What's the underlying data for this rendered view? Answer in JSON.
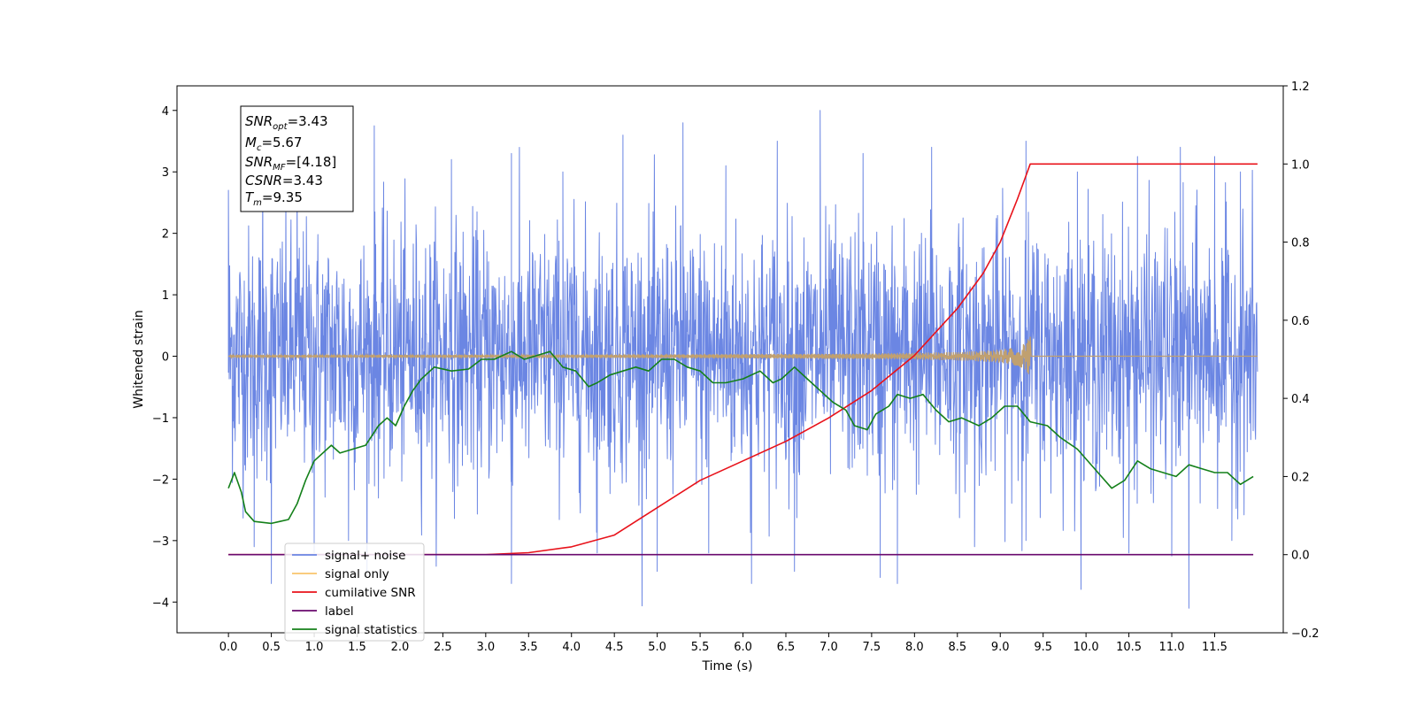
{
  "chart_data": {
    "type": "line",
    "xlabel": "Time (s)",
    "ylabel": "Whitened strain",
    "xlim": [
      -0.6,
      12.3
    ],
    "ylim_left": [
      -4.5,
      4.4
    ],
    "ylim_right": [
      -0.2,
      1.2
    ],
    "x_ticks": [
      0.0,
      0.5,
      1.0,
      1.5,
      2.0,
      2.5,
      3.0,
      3.5,
      4.0,
      4.5,
      5.0,
      5.5,
      6.0,
      6.5,
      7.0,
      7.5,
      8.0,
      8.5,
      9.0,
      9.5,
      10.0,
      10.5,
      11.0,
      11.5
    ],
    "x_tick_labels": [
      "0.0",
      "0.5",
      "1.0",
      "1.5",
      "2.0",
      "2.5",
      "3.0",
      "3.5",
      "4.0",
      "4.5",
      "5.0",
      "5.5",
      "6.0",
      "6.5",
      "7.0",
      "7.5",
      "8.0",
      "8.5",
      "9.0",
      "9.5",
      "10.0",
      "10.5",
      "11.0",
      "11.5"
    ],
    "y_ticks_left": [
      -4,
      -3,
      -2,
      -1,
      0,
      1,
      2,
      3,
      4
    ],
    "y_tick_labels_left": [
      "−4",
      "−3",
      "−2",
      "−1",
      "0",
      "1",
      "2",
      "3",
      "4"
    ],
    "y_ticks_right": [
      -0.2,
      0.0,
      0.2,
      0.4,
      0.6,
      0.8,
      1.0,
      1.2
    ],
    "y_tick_labels_right": [
      "−0.2",
      "0.0",
      "0.2",
      "0.4",
      "0.6",
      "0.8",
      "1.0",
      "1.2"
    ],
    "grid": false,
    "legend_position": "lower-left",
    "annotation": {
      "lines": [
        {
          "main": "SNR",
          "sub": "opt",
          "value": "=3.43"
        },
        {
          "main": "M",
          "sub": "c",
          "value": "=5.67"
        },
        {
          "main": "SNR",
          "sub": "MF",
          "value": "=[4.18]"
        },
        {
          "main": "CSNR",
          "sub": "",
          "value": "=3.43"
        },
        {
          "main": "T",
          "sub": "m",
          "value": "=9.35"
        }
      ]
    },
    "series": [
      {
        "name": "signal+ noise",
        "axis": "left",
        "color": "#6b86e3",
        "kind": "noise_band",
        "x_range": [
          0.0,
          12.0
        ],
        "typical_range": [
          -2.2,
          2.3
        ],
        "spikes_up": [
          [
            0.0,
            2.7
          ],
          [
            0.4,
            2.9
          ],
          [
            0.8,
            3.5
          ],
          [
            1.7,
            3.75
          ],
          [
            2.6,
            3.2
          ],
          [
            3.3,
            3.3
          ],
          [
            3.9,
            3.0
          ],
          [
            4.6,
            3.6
          ],
          [
            5.3,
            3.8
          ],
          [
            5.8,
            3.1
          ],
          [
            6.4,
            3.5
          ],
          [
            6.9,
            4.0
          ],
          [
            7.4,
            3.3
          ],
          [
            8.2,
            3.4
          ],
          [
            9.3,
            3.5
          ],
          [
            9.9,
            3.0
          ],
          [
            10.6,
            3.25
          ],
          [
            11.1,
            3.4
          ],
          [
            11.5,
            3.25
          ],
          [
            11.8,
            3.0
          ]
        ],
        "spikes_down": [
          [
            0.3,
            -3.1
          ],
          [
            0.5,
            -3.7
          ],
          [
            1.0,
            -3.2
          ],
          [
            1.4,
            -3.0
          ],
          [
            3.3,
            -3.7
          ],
          [
            4.3,
            -3.2
          ],
          [
            5.0,
            -3.5
          ],
          [
            5.6,
            -3.2
          ],
          [
            6.1,
            -3.7
          ],
          [
            6.6,
            -3.5
          ],
          [
            7.6,
            -3.6
          ],
          [
            7.8,
            -3.7
          ],
          [
            8.7,
            -3.1
          ],
          [
            9.3,
            -3.0
          ],
          [
            10.5,
            -3.2
          ],
          [
            11.0,
            -3.25
          ],
          [
            11.2,
            -4.1
          ],
          [
            11.7,
            -3.0
          ]
        ]
      },
      {
        "name": "signal only",
        "axis": "left",
        "color": "#c0a070",
        "kind": "chirp",
        "x_range": [
          0.0,
          12.0
        ],
        "merger_time": 9.35,
        "peak_amplitude": 0.35
      },
      {
        "name": "cumilative SNR",
        "axis": "right",
        "color": "#e8121a",
        "x": [
          0.0,
          3.0,
          3.5,
          4.0,
          4.5,
          5.0,
          5.5,
          6.0,
          6.5,
          7.0,
          7.5,
          8.0,
          8.5,
          8.8,
          9.0,
          9.2,
          9.3,
          9.35,
          12.0
        ],
        "y": [
          0.0,
          0.0,
          0.005,
          0.02,
          0.05,
          0.12,
          0.19,
          0.24,
          0.29,
          0.35,
          0.42,
          0.51,
          0.63,
          0.72,
          0.8,
          0.91,
          0.97,
          1.0,
          1.0
        ]
      },
      {
        "name": "label",
        "axis": "right",
        "color": "#6a0a6e",
        "x": [
          0.0,
          11.95
        ],
        "y": [
          0.0,
          0.0
        ]
      },
      {
        "name": "signal statistics",
        "axis": "right",
        "color": "#14801a",
        "x": [
          0.0,
          0.07,
          0.15,
          0.2,
          0.3,
          0.5,
          0.6,
          0.7,
          0.8,
          0.9,
          1.0,
          1.2,
          1.3,
          1.45,
          1.6,
          1.75,
          1.85,
          1.95,
          2.05,
          2.15,
          2.25,
          2.4,
          2.6,
          2.8,
          2.95,
          3.1,
          3.3,
          3.45,
          3.6,
          3.75,
          3.9,
          4.05,
          4.2,
          4.3,
          4.45,
          4.6,
          4.75,
          4.9,
          5.05,
          5.2,
          5.35,
          5.5,
          5.65,
          5.8,
          6.0,
          6.2,
          6.35,
          6.45,
          6.6,
          6.75,
          6.9,
          7.05,
          7.2,
          7.3,
          7.45,
          7.55,
          7.7,
          7.8,
          7.95,
          8.1,
          8.25,
          8.4,
          8.55,
          8.75,
          8.9,
          9.05,
          9.2,
          9.35,
          9.55,
          9.7,
          9.9,
          10.1,
          10.3,
          10.45,
          10.6,
          10.75,
          10.9,
          11.05,
          11.2,
          11.35,
          11.5,
          11.65,
          11.8,
          11.95
        ],
        "y": [
          0.17,
          0.21,
          0.16,
          0.11,
          0.085,
          0.08,
          0.085,
          0.09,
          0.13,
          0.19,
          0.24,
          0.28,
          0.26,
          0.27,
          0.28,
          0.33,
          0.35,
          0.33,
          0.38,
          0.42,
          0.45,
          0.48,
          0.47,
          0.475,
          0.5,
          0.5,
          0.52,
          0.5,
          0.51,
          0.52,
          0.48,
          0.47,
          0.43,
          0.44,
          0.46,
          0.47,
          0.48,
          0.47,
          0.5,
          0.5,
          0.48,
          0.47,
          0.44,
          0.44,
          0.45,
          0.47,
          0.44,
          0.45,
          0.48,
          0.45,
          0.42,
          0.39,
          0.37,
          0.33,
          0.32,
          0.36,
          0.38,
          0.41,
          0.4,
          0.41,
          0.37,
          0.34,
          0.35,
          0.33,
          0.35,
          0.38,
          0.38,
          0.34,
          0.33,
          0.3,
          0.27,
          0.22,
          0.17,
          0.19,
          0.24,
          0.22,
          0.21,
          0.2,
          0.23,
          0.22,
          0.21,
          0.21,
          0.18,
          0.2
        ]
      }
    ],
    "legend": [
      {
        "label": "signal+ noise",
        "color": "#6b86e3",
        "muted": false
      },
      {
        "label": "signal only",
        "color": "#f9c46b",
        "muted": false
      },
      {
        "label": "cumilative SNR",
        "color": "#e8121a",
        "muted": false
      },
      {
        "label": "label",
        "color": "#6a0a6e",
        "muted": false
      },
      {
        "label": "signal statistics",
        "color": "#14801a",
        "muted": false
      }
    ]
  }
}
